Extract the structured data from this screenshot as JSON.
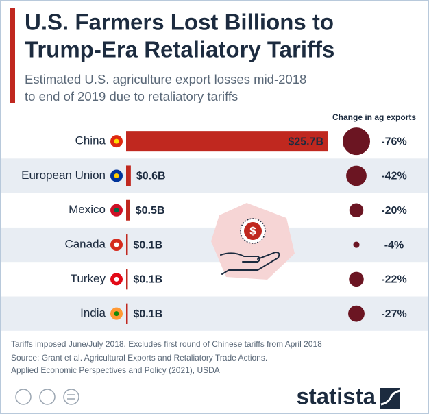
{
  "chart_data": {
    "type": "bar",
    "title": [
      "U.S. Farmers Lost Billions to",
      "Trump-Era Retaliatory Tariffs"
    ],
    "subtitle": [
      "Estimated U.S. agriculture export losses mid-2018",
      "to end of 2019 due to retaliatory tariffs"
    ],
    "categories": [
      "China",
      "European Union",
      "Mexico",
      "Canada",
      "Turkey",
      "India"
    ],
    "values": [
      25.7,
      0.6,
      0.5,
      0.1,
      0.1,
      0.1
    ],
    "value_labels": [
      "$25.7B",
      "$0.6B",
      "$0.5B",
      "$0.1B",
      "$0.1B",
      "$0.1B"
    ],
    "color": "#c0281f",
    "change": {
      "title": "Change in ag exports",
      "values": [
        -76,
        -42,
        -20,
        -4,
        -22,
        -27
      ],
      "value_labels": [
        "-76%",
        "-42%",
        "-20%",
        "-4%",
        "-22%",
        "-27%"
      ],
      "color": "#6b1522"
    },
    "notes": [
      "Tariffs imposed June/July 2018. Excludes first round of Chinese tariffs from April 2018",
      "Source: Grant et al. Agricultural Exports and Retaliatory Trade Actions.",
      "Applied Economic Perspectives and Policy (2021), USDA"
    ],
    "brand": "statista"
  }
}
